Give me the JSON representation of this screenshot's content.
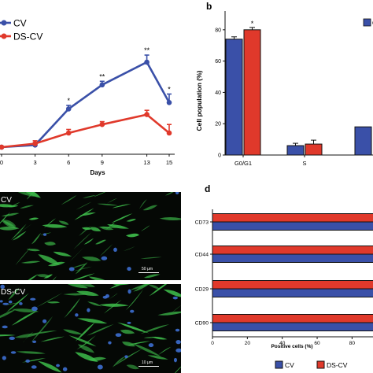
{
  "colors": {
    "cv": "#3a50a8",
    "dscv": "#e0392b",
    "axis": "#111111",
    "fibre": "#3dbb4a",
    "nucleus": "#3d6fd0"
  },
  "chart_data": [
    {
      "panel": "a",
      "type": "line",
      "legend": [
        "CV",
        "DS-CV"
      ],
      "legend_placement": "top-left",
      "xlabel": "Days",
      "x": [
        0,
        3,
        6,
        9,
        13,
        15
      ],
      "xticks": [
        "0",
        "3",
        "6",
        "9",
        "13",
        "15"
      ],
      "series": [
        {
          "name": "CV",
          "values": [
            1.0,
            1.3,
            6.4,
            9.8,
            13.0,
            7.3
          ],
          "error": [
            0.1,
            0.3,
            0.5,
            0.5,
            1.0,
            1.2
          ]
        },
        {
          "name": "DS-CV",
          "values": [
            1.0,
            1.5,
            3.0,
            4.2,
            5.6,
            3.0
          ],
          "error": [
            0.1,
            0.4,
            0.5,
            0.4,
            0.6,
            1.2
          ]
        }
      ],
      "significance": [
        "",
        "",
        "*",
        "**",
        "**",
        "*"
      ],
      "ylim": [
        0,
        16
      ]
    },
    {
      "panel": "b",
      "type": "bar",
      "ylabel": "Cell population (%)",
      "categories": [
        "G0/G1",
        "S",
        ""
      ],
      "yticks": [
        "0",
        "20",
        "40",
        "60",
        "80"
      ],
      "ylim": [
        0,
        95
      ],
      "series": [
        {
          "name": "CV",
          "values": [
            74,
            6,
            18
          ],
          "error": [
            1.5,
            1.5,
            0
          ]
        },
        {
          "name": "DS-CV",
          "values": [
            80,
            7,
            null
          ],
          "error": [
            1.5,
            2.5,
            0
          ]
        }
      ],
      "significance": [
        "*",
        "",
        ""
      ],
      "legend_fragment": "C"
    },
    {
      "panel": "d",
      "type": "bar",
      "orientation": "horizontal",
      "xlabel": "Positive cells (%)",
      "xticks": [
        "0",
        "20",
        "40",
        "60",
        "80"
      ],
      "xlim": [
        0,
        92
      ],
      "categories": [
        "CD73",
        "CD44",
        "CD29",
        "CD90"
      ],
      "series": [
        {
          "name": "CV",
          "values": [
            99,
            99,
            99,
            99
          ]
        },
        {
          "name": "DS-CV",
          "values": [
            99,
            99,
            99,
            99
          ]
        }
      ],
      "legend": [
        "CV",
        "DS-CV"
      ],
      "legend_placement": "bottom"
    }
  ],
  "panels": {
    "b_label": "b",
    "d_label": "d",
    "c_top_label": "CV",
    "c_bottom_label": "DS-CV",
    "scale_top": "50 μm",
    "scale_bottom": "10 μm"
  }
}
